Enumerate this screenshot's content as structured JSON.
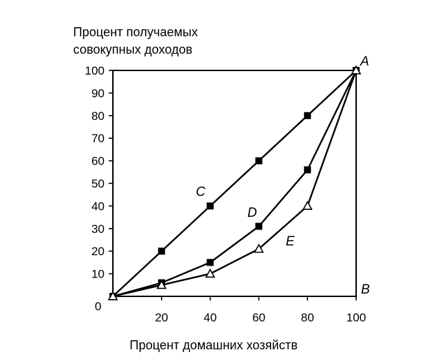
{
  "chart_data": {
    "type": "line",
    "ylabel_lines": [
      "Процент получаемых",
      "совокупных доходов"
    ],
    "xlabel": "Процент домашних хозяйств",
    "x_ticks": [
      "20",
      "40",
      "60",
      "80",
      "100"
    ],
    "y_ticks": [
      "10",
      "20",
      "30",
      "40",
      "50",
      "60",
      "70",
      "80",
      "90",
      "100"
    ],
    "origin_label": "0",
    "xlim": [
      0,
      100
    ],
    "ylim": [
      0,
      100
    ],
    "corner_labels": {
      "top_right": "A",
      "bottom_right": "B"
    },
    "series": [
      {
        "name": "C",
        "marker": "filled-square",
        "x": [
          0,
          20,
          40,
          60,
          80,
          100
        ],
        "y": [
          0,
          20,
          40,
          60,
          80,
          100
        ]
      },
      {
        "name": "D",
        "marker": "filled-square",
        "x": [
          0,
          20,
          40,
          60,
          80,
          100
        ],
        "y": [
          0,
          6,
          15,
          31,
          56,
          100
        ]
      },
      {
        "name": "E",
        "marker": "open-triangle",
        "x": [
          0,
          20,
          40,
          60,
          80,
          100
        ],
        "y": [
          0,
          5,
          10,
          21,
          40,
          100
        ]
      }
    ]
  }
}
